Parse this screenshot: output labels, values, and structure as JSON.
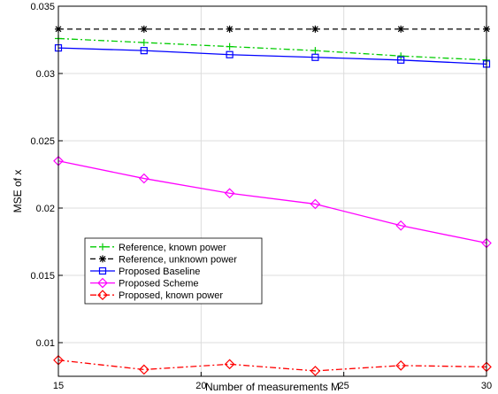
{
  "chart_data": {
    "type": "line",
    "title": "",
    "xlabel": "Number of measurements M",
    "ylabel": "MSE of x",
    "xlim": [
      15,
      30
    ],
    "ylim": [
      0.0075,
      0.035
    ],
    "xticks": [
      15,
      20,
      25,
      30
    ],
    "yticks": [
      0.01,
      0.015,
      0.02,
      0.025,
      0.03,
      0.035
    ],
    "yticklabels": [
      "0.01",
      "0.015",
      "0.02",
      "0.025",
      "0.03",
      "0.035"
    ],
    "grid": true,
    "legend_position": "lower-left",
    "x": [
      15,
      18,
      21,
      24,
      27,
      30
    ],
    "series": [
      {
        "name": "Reference, known power",
        "color": "#00cc00",
        "dash": "dashdot",
        "marker": "plus",
        "values": [
          0.0326,
          0.0323,
          0.032,
          0.0317,
          0.0313,
          0.031
        ]
      },
      {
        "name": "Reference, unknown power",
        "color": "#000000",
        "dash": "dashed",
        "marker": "asterisk",
        "values": [
          0.0333,
          0.0333,
          0.0333,
          0.0333,
          0.0333,
          0.0333
        ]
      },
      {
        "name": "Proposed Baseline",
        "color": "#0000ff",
        "dash": "solid",
        "marker": "square",
        "values": [
          0.0319,
          0.0317,
          0.0314,
          0.0312,
          0.031,
          0.0307
        ]
      },
      {
        "name": "Proposed Scheme",
        "color": "#ff00ff",
        "dash": "solid",
        "marker": "diamond",
        "values": [
          0.0235,
          0.0222,
          0.0211,
          0.0203,
          0.0187,
          0.0174
        ]
      },
      {
        "name": "Proposed, known power",
        "color": "#ff0000",
        "dash": "dashdot",
        "marker": "diamond",
        "values": [
          0.0087,
          0.008,
          0.0084,
          0.0079,
          0.0083,
          0.0082
        ]
      }
    ]
  }
}
